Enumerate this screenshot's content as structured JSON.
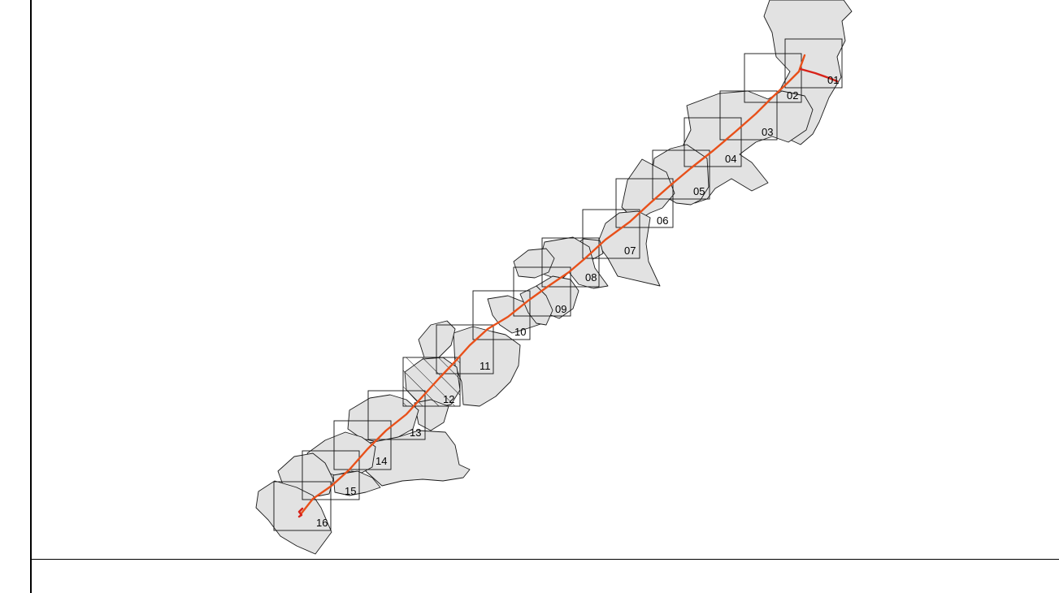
{
  "map": {
    "colors": {
      "region_fill": "#e2e2e2",
      "region_stroke": "#1a1a1a",
      "sheet_stroke": "#111111",
      "route": "#e8501a",
      "route_end": "#d8231a"
    },
    "sheets": [
      {
        "label": "01"
      },
      {
        "label": "02"
      },
      {
        "label": "03"
      },
      {
        "label": "04"
      },
      {
        "label": "05"
      },
      {
        "label": "06"
      },
      {
        "label": "07"
      },
      {
        "label": "08"
      },
      {
        "label": "09"
      },
      {
        "label": "10"
      },
      {
        "label": "11"
      },
      {
        "label": "12"
      },
      {
        "label": "13"
      },
      {
        "label": "14"
      },
      {
        "label": "15"
      },
      {
        "label": "16"
      }
    ],
    "highlighted_sheet": "12"
  }
}
